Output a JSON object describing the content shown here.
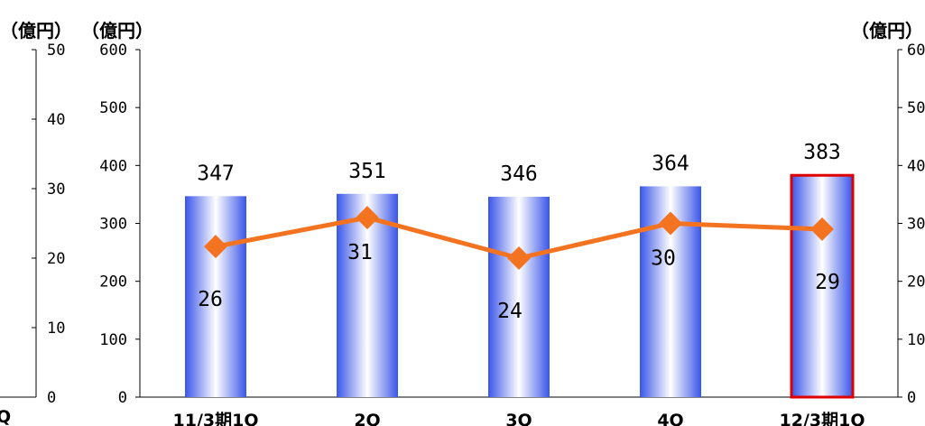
{
  "units": {
    "far_left": "（億円）",
    "left": "（億円）",
    "right": "（億円）"
  },
  "colors": {
    "bar_gradient_edge": "#3a55e8",
    "bar_gradient_center": "#ffffff",
    "highlight_border": "#e00000",
    "line": "#f47320",
    "axis": "#000000"
  },
  "chart_data": {
    "type": "bar",
    "categories": [
      "11/3期1Q",
      "2Q",
      "3Q",
      "4Q",
      "12/3期1Q"
    ],
    "series": [
      {
        "type": "bar",
        "axis": "left",
        "values": [
          347,
          351,
          346,
          364,
          383
        ],
        "highlight_index": 4
      },
      {
        "type": "line",
        "axis": "right",
        "marker": "diamond",
        "values": [
          26,
          31,
          24,
          30,
          29
        ]
      }
    ],
    "axes": {
      "left": {
        "ylim": [
          0,
          600
        ],
        "ticks": [
          "0",
          "100",
          "200",
          "300",
          "400",
          "500",
          "600"
        ]
      },
      "far_left": {
        "ylim": [
          0,
          50
        ],
        "ticks": [
          "0",
          "10",
          "20",
          "30",
          "40",
          "50"
        ]
      },
      "right": {
        "ylim": [
          0,
          60
        ],
        "ticks": [
          "0",
          "10",
          "20",
          "30",
          "40",
          "50",
          "60"
        ]
      }
    },
    "legend": "none",
    "grid": false,
    "partial_left_category": "Q"
  }
}
